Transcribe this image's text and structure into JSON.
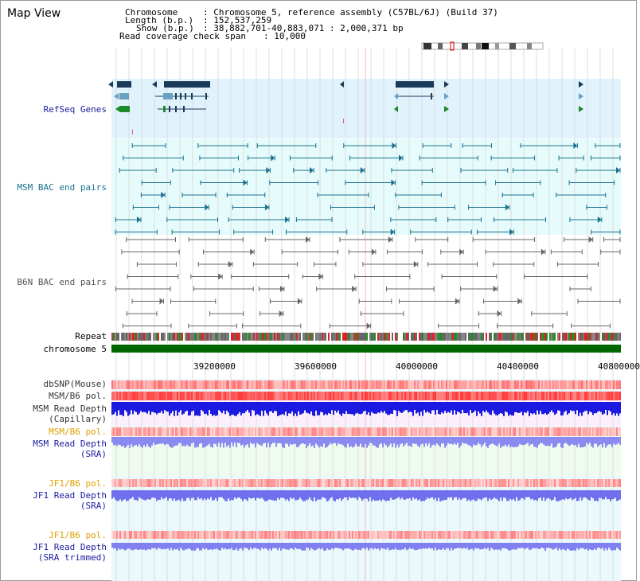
{
  "title": "Map View",
  "info": {
    "chromosome_label": "Chromosome",
    "chromosome_value": ": Chromosome 5, reference assembly (C57BL/6J) (Build 37)",
    "length_label": "Length (b.p.)",
    "length_value": ": 152,537,259",
    "show_label": "Show (b.p.)",
    "show_value": ": 38,882,701-40,883,071 : 2,000,371 bp",
    "coverage_label": "Read coverage check span",
    "coverage_value": ": 10,000"
  },
  "tracks": {
    "refseq": "RefSeq Genes",
    "msm_bac": "MSM BAC end pairs",
    "b6n_bac": "B6N BAC end pairs",
    "repeat": "Repeat",
    "chromosome": "chromosome 5",
    "dbsnp": "dbSNP(Mouse)",
    "msm_b6_pol": "MSM/B6 pol.",
    "msm_depth_cap_1": "MSM Read Depth",
    "msm_depth_cap_2": "(Capillary)",
    "msm_b6_pol2": "MSM/B6 pol.",
    "msm_depth_sra_1": "MSM Read Depth",
    "msm_depth_sra_2": "(SRA)",
    "jf1_b6_pol": "JF1/B6 pol.",
    "jf1_depth_sra_1": "JF1 Read Depth",
    "jf1_depth_sra_2": "(SRA)",
    "jf1_b6_pol2": "JF1/B6 pol.",
    "jf1_depth_trim_1": "JF1 Read Depth",
    "jf1_depth_trim_2": "(SRA trimmed)"
  },
  "axis_ticks": [
    "39200000",
    "39600000",
    "40000000",
    "40400000",
    "40800000"
  ],
  "colors": {
    "refseq_bg": "#e0f2fb",
    "msm_bg": "#e6fbfb",
    "depth_bg": "#fdf3fb",
    "refseq_label": "#1a1a9c",
    "msm_label": "#1a7090",
    "b6n_label": "#555555",
    "pol_label": "#e0a000",
    "depth_label": "#1a1aa0",
    "chromosome": "#006600"
  }
}
